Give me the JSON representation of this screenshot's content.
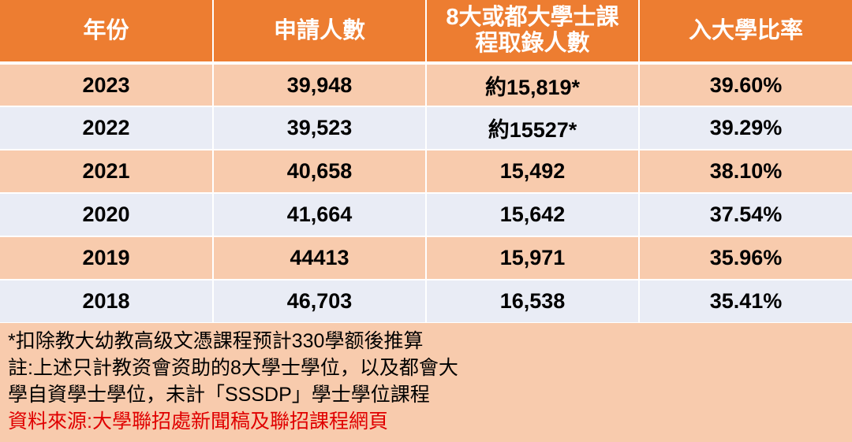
{
  "header": {
    "year": "年份",
    "applicants": "申請人數",
    "admitted_line1": "8大或都大學士課",
    "admitted_line2": "程取錄人數",
    "rate": "入大學比率"
  },
  "rows": [
    {
      "year": "2023",
      "applicants": "39,948",
      "admitted": "約15,819*",
      "rate": "39.60%"
    },
    {
      "year": "2022",
      "applicants": "39,523",
      "admitted": "約15527*",
      "rate": "39.29%"
    },
    {
      "year": "2021",
      "applicants": "40,658",
      "admitted": "15,492",
      "rate": "38.10%"
    },
    {
      "year": "2020",
      "applicants": "41,664",
      "admitted": "15,642",
      "rate": "37.54%"
    },
    {
      "year": "2019",
      "applicants": "44413",
      "admitted": "15,971",
      "rate": "35.96%"
    },
    {
      "year": "2018",
      "applicants": "46,703",
      "admitted": "16,538",
      "rate": "35.41%"
    }
  ],
  "notes": {
    "line1": "*扣除教大幼教高级文憑課程预計330學额後推算",
    "line2": "註:上述只計教资會资助的8大學士學位，以及都會大",
    "line3": "學自資學士學位，未計「SSSDP」學士學位課程",
    "source": "資料來源:大學聯招處新聞稿及聯招課程網頁"
  },
  "colors": {
    "header_bg": "#ed7d31",
    "row_odd_bg": "#f8cbad",
    "row_even_bg": "#e9ecf5",
    "source_text": "#e00000"
  }
}
